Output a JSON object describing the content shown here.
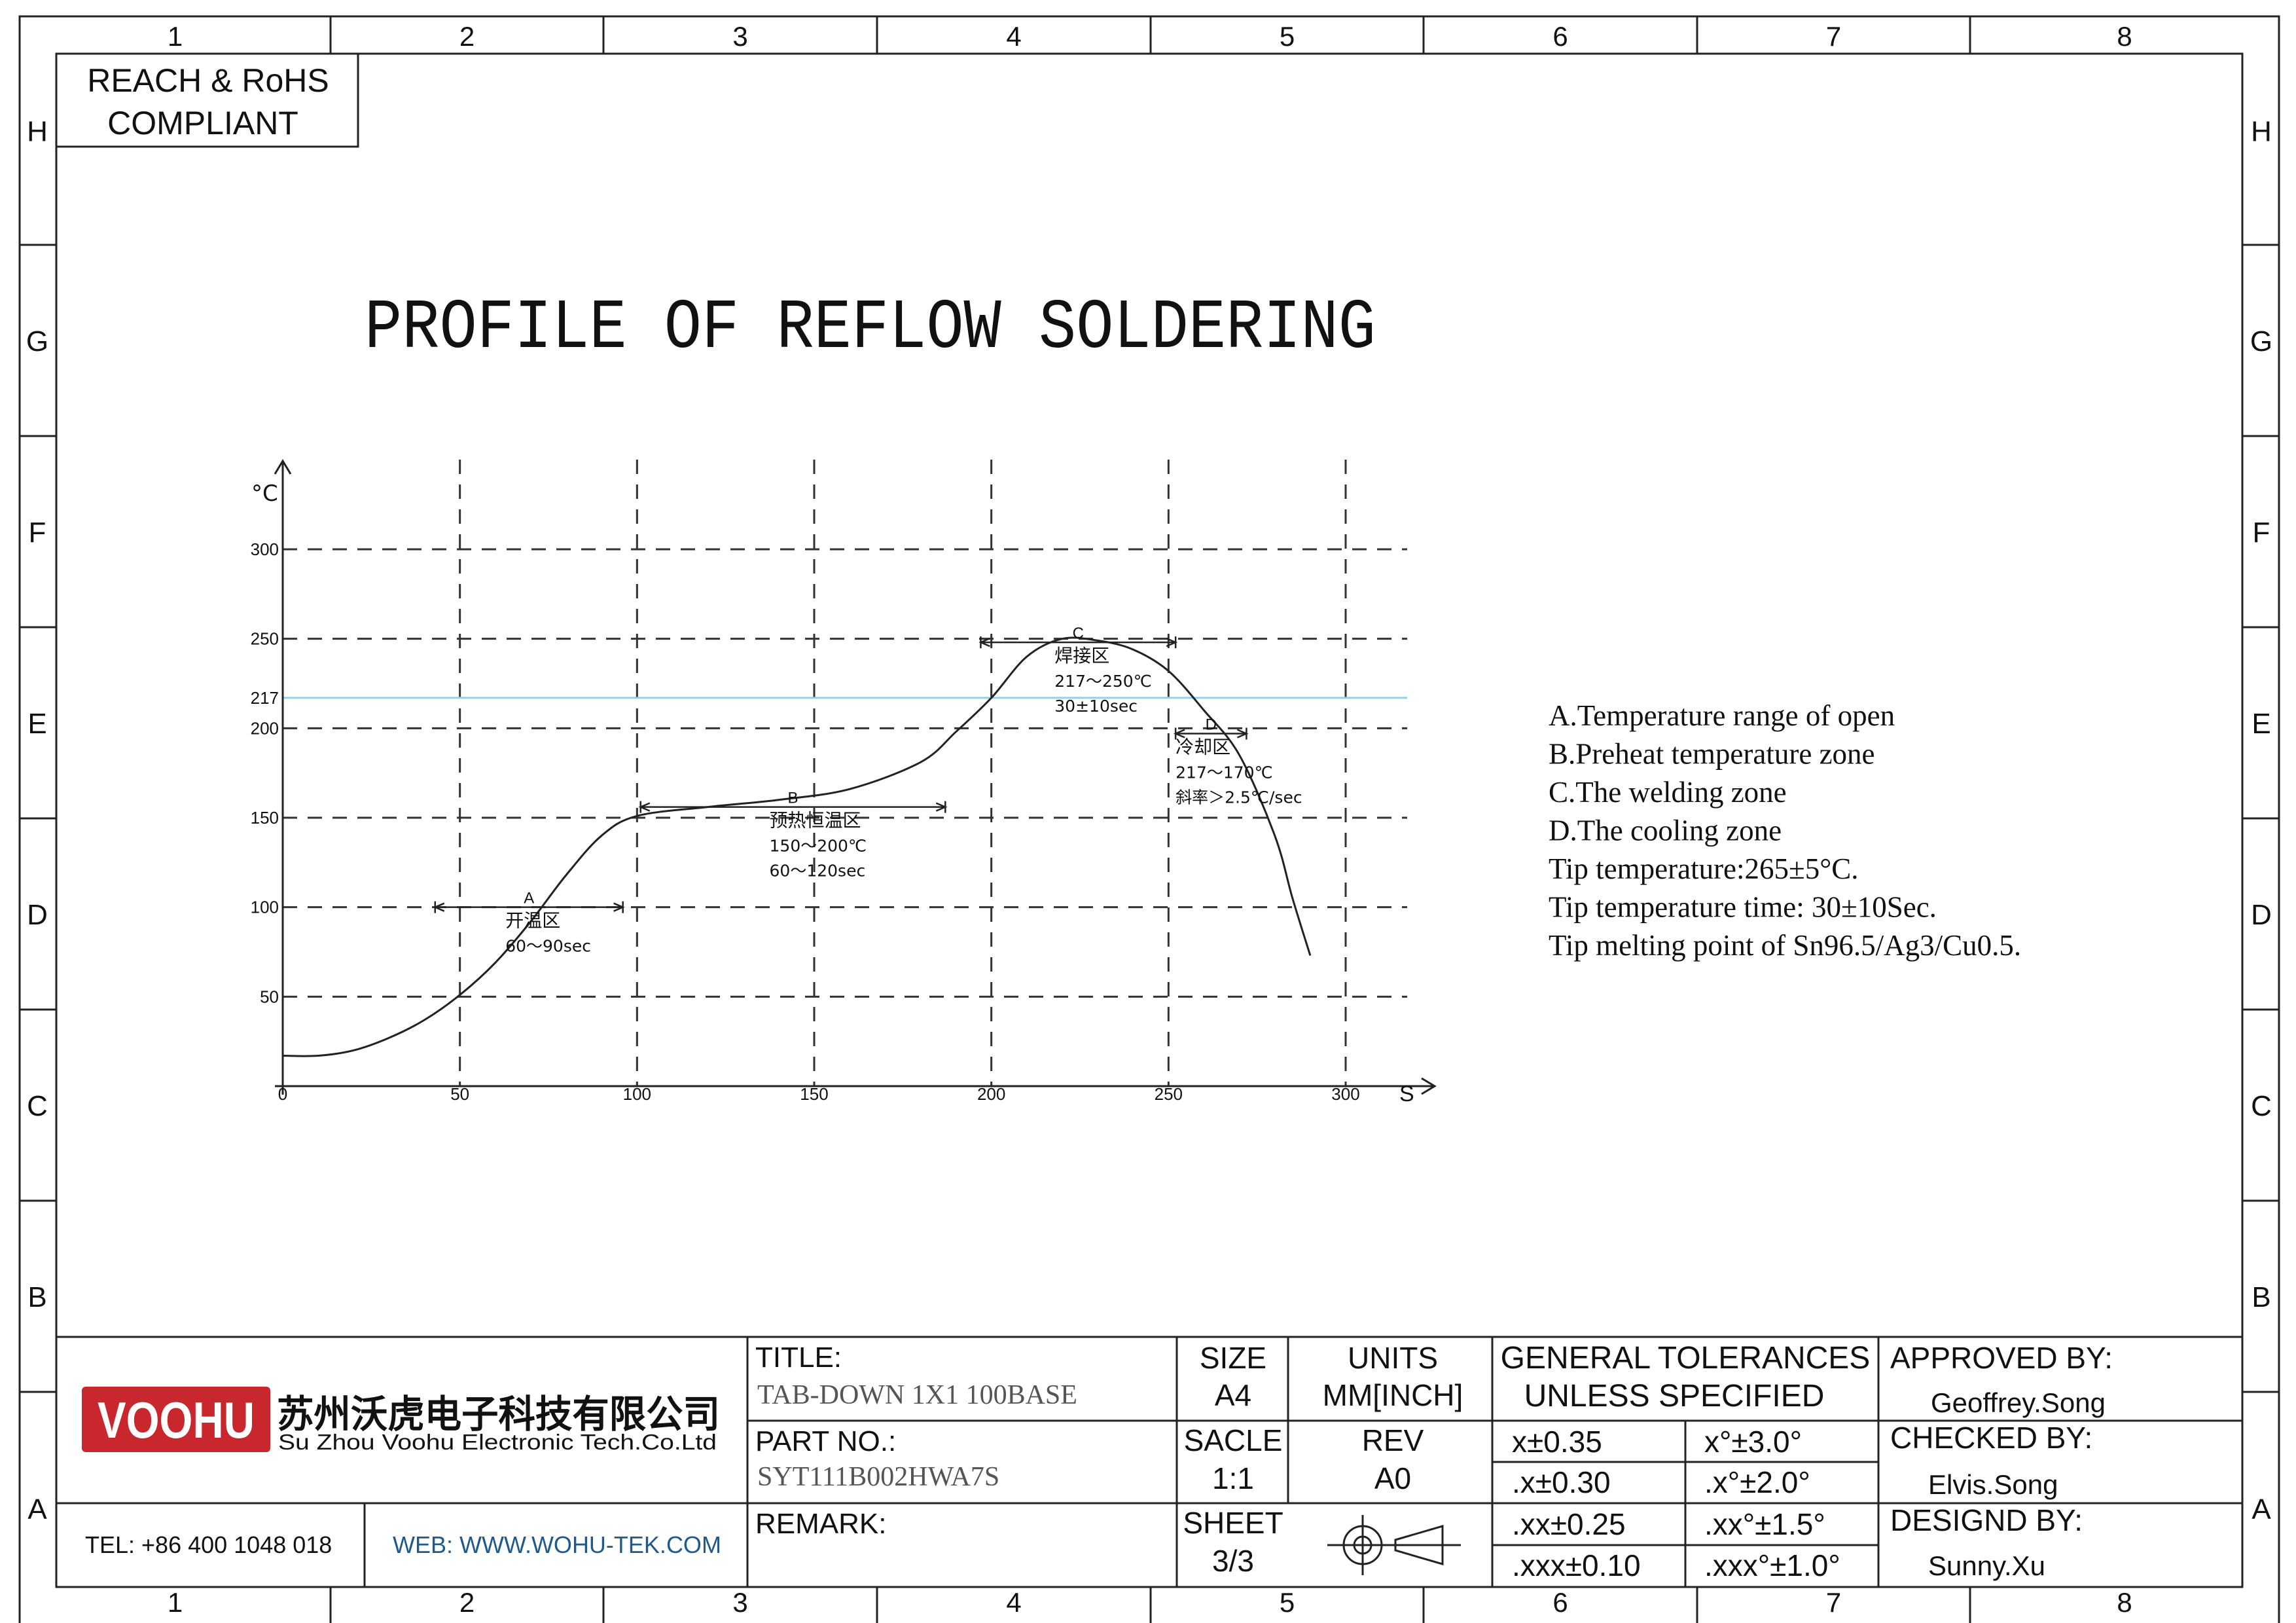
{
  "frame": {
    "zone_columns": [
      "1",
      "2",
      "3",
      "4",
      "5",
      "6",
      "7",
      "8"
    ],
    "zone_rows": [
      "H",
      "G",
      "F",
      "E",
      "D",
      "C",
      "B",
      "A"
    ]
  },
  "compliance": {
    "line1": "REACH & RoHS",
    "line2": "COMPLIANT"
  },
  "drawing": {
    "title": "PROFILE OF REFLOW SOLDERING"
  },
  "chart_data": {
    "type": "line",
    "x_unit": "S",
    "y_unit": "°C",
    "xlim": [
      0,
      300
    ],
    "ylim": [
      0,
      300
    ],
    "x_ticks": [
      "0",
      "50",
      "100",
      "150",
      "200",
      "250",
      "300"
    ],
    "y_ticks": [
      "300",
      "250",
      "217",
      "200",
      "150",
      "100",
      "50"
    ],
    "grid": "dashed",
    "reference_line": {
      "y": 217,
      "color": "#8fd3e8"
    },
    "series": [
      {
        "points": [
          [
            0,
            17
          ],
          [
            10,
            17
          ],
          [
            20,
            20
          ],
          [
            30,
            27
          ],
          [
            40,
            37
          ],
          [
            50,
            51
          ],
          [
            60,
            69
          ],
          [
            70,
            92
          ],
          [
            80,
            118
          ],
          [
            90,
            140
          ],
          [
            100,
            151
          ],
          [
            120,
            156
          ],
          [
            140,
            160
          ],
          [
            160,
            166
          ],
          [
            180,
            181
          ],
          [
            190,
            198
          ],
          [
            200,
            217
          ],
          [
            210,
            240
          ],
          [
            220,
            250
          ],
          [
            230,
            249
          ],
          [
            240,
            244
          ],
          [
            250,
            232
          ],
          [
            260,
            210
          ],
          [
            270,
            185
          ],
          [
            280,
            140
          ],
          [
            285,
            105
          ],
          [
            290,
            73
          ]
        ]
      }
    ],
    "zones": [
      {
        "letter": "A",
        "x_range": [
          43,
          96
        ],
        "y": 100,
        "name": "开温区",
        "detail": [
          "60～90sec"
        ]
      },
      {
        "letter": "B",
        "x_range": [
          101,
          187
        ],
        "y": 156,
        "name": "预热恒温区",
        "detail": [
          "150～200℃",
          "60～120sec"
        ]
      },
      {
        "letter": "C",
        "x_range": [
          197,
          252
        ],
        "y": 248,
        "name": "焊接区",
        "detail": [
          "217～250℃",
          "30±10sec"
        ]
      },
      {
        "letter": "D",
        "x_range": [
          252,
          272
        ],
        "y": 197,
        "name": "冷却区",
        "detail": [
          "217～170℃",
          "斜率＞2.5℃/sec"
        ]
      }
    ]
  },
  "notes": [
    "A.Temperature range of open",
    "B.Preheat temperature zone",
    "C.The welding zone",
    "D.The cooling zone",
    "Tip temperature:265±5°C.",
    "Tip temperature time: 30±10Sec.",
    "Tip melting point of Sn96.5/Ag3/Cu0.5."
  ],
  "title_block": {
    "logo_text": "VOOHU",
    "brand_color": "#c8282d",
    "company_cn": "苏州沃虎电子科技有限公司",
    "company_en": "Su Zhou Voohu Electronic Tech.Co.Ltd",
    "tel": "TEL: +86 400 1048 018",
    "web": "WEB: WWW.WOHU-TEK.COM",
    "link_color": "#1f5a8e",
    "title_label": "TITLE:",
    "title_value": "TAB-DOWN 1X1 100BASE",
    "part_label": "PART NO.:",
    "part_value": "SYT111B002HWA7S",
    "remark_label": "REMARK:",
    "size_label": "SIZE",
    "size_value": "A4",
    "scale_label": "SACLE",
    "scale_value": "1:1",
    "sheet_label": "SHEET",
    "sheet_value": "3/3",
    "units_label": "UNITS",
    "units_value": "MM[INCH]",
    "rev_label": "REV",
    "rev_value": "A0",
    "projection_icon": "first-angle-projection-icon",
    "tolerance_header1": "GENERAL TOLERANCES",
    "tolerance_header2": "UNLESS SPECIFIED",
    "tolerances": [
      {
        "linear": "x±0.35",
        "angular": "x°±3.0°"
      },
      {
        "linear": ".x±0.30",
        "angular": ".x°±2.0°"
      },
      {
        "linear": ".xx±0.25",
        "angular": ".xx°±1.5°"
      },
      {
        "linear": ".xxx±0.10",
        "angular": ".xxx°±1.0°"
      }
    ],
    "approved_label": "APPROVED BY:",
    "approved_value": "Geoffrey.Song",
    "checked_label": "CHECKED BY:",
    "checked_value": "Elvis.Song",
    "designed_label": "DESIGND BY:",
    "designed_value": "Sunny.Xu"
  }
}
